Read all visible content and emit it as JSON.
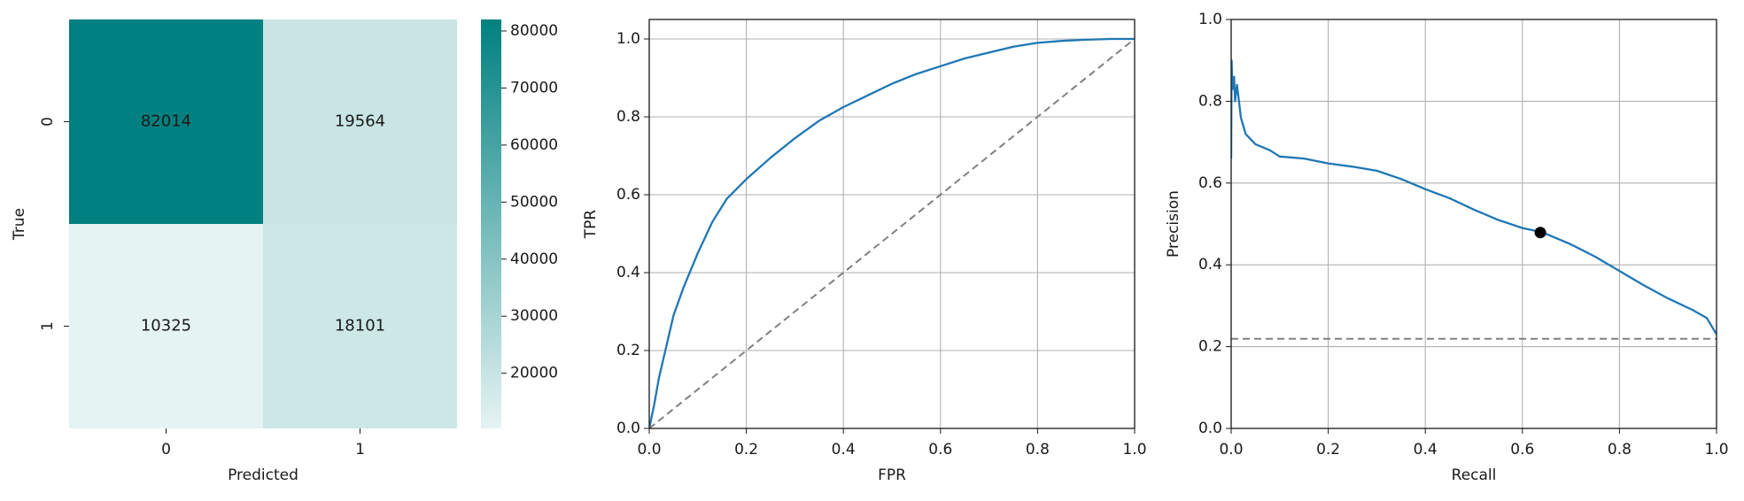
{
  "chart_data": [
    {
      "type": "heatmap",
      "xlabel": "Predicted",
      "ylabel": "True",
      "x_categories": [
        "0",
        "1"
      ],
      "y_categories": [
        "0",
        "1"
      ],
      "values": [
        [
          82014,
          19564
        ],
        [
          10325,
          18101
        ]
      ],
      "colorbar": {
        "min": 10325,
        "max": 82014,
        "ticks": [
          "20000",
          "30000",
          "40000",
          "50000",
          "60000",
          "70000",
          "80000"
        ],
        "color_low": "#e6f3f3",
        "color_high": "#008080"
      }
    },
    {
      "type": "line",
      "xlabel": "FPR",
      "ylabel": "TPR",
      "xlim": [
        0,
        1
      ],
      "ylim": [
        0,
        1.05
      ],
      "xticks": [
        "0.0",
        "0.2",
        "0.4",
        "0.6",
        "0.8",
        "1.0"
      ],
      "yticks": [
        "0.0",
        "0.2",
        "0.4",
        "0.6",
        "0.8",
        "1.0"
      ],
      "grid": true,
      "series": [
        {
          "color": "#1f77b4",
          "x": [
            0,
            0.01,
            0.02,
            0.035,
            0.05,
            0.07,
            0.1,
            0.13,
            0.16,
            0.2,
            0.25,
            0.3,
            0.35,
            0.4,
            0.45,
            0.5,
            0.55,
            0.6,
            0.65,
            0.7,
            0.75,
            0.8,
            0.85,
            0.9,
            0.95,
            1.0
          ],
          "y": [
            0,
            0.06,
            0.13,
            0.21,
            0.29,
            0.36,
            0.45,
            0.53,
            0.59,
            0.64,
            0.695,
            0.745,
            0.79,
            0.825,
            0.855,
            0.885,
            0.91,
            0.93,
            0.95,
            0.965,
            0.98,
            0.99,
            0.995,
            0.998,
            1.0,
            1.0
          ]
        },
        {
          "color": "#808080",
          "dashed": true,
          "x": [
            0,
            1
          ],
          "y": [
            0,
            1
          ]
        }
      ]
    },
    {
      "type": "line",
      "xlabel": "Recall",
      "ylabel": "Precision",
      "xlim": [
        0,
        1
      ],
      "ylim": [
        0,
        1
      ],
      "xticks": [
        "0.0",
        "0.2",
        "0.4",
        "0.6",
        "0.8",
        "1.0"
      ],
      "yticks": [
        "0.0",
        "0.2",
        "0.4",
        "0.6",
        "0.8",
        "1.0"
      ],
      "grid": true,
      "series": [
        {
          "color": "#1f77b4",
          "x": [
            0,
            0.001,
            0.002,
            0.004,
            0.006,
            0.008,
            0.012,
            0.02,
            0.03,
            0.05,
            0.08,
            0.1,
            0.15,
            0.2,
            0.25,
            0.3,
            0.35,
            0.4,
            0.45,
            0.5,
            0.55,
            0.6,
            0.64,
            0.7,
            0.75,
            0.8,
            0.85,
            0.9,
            0.95,
            0.98,
            1.0
          ],
          "y": [
            0.66,
            0.9,
            0.85,
            0.83,
            0.86,
            0.8,
            0.84,
            0.76,
            0.72,
            0.695,
            0.68,
            0.665,
            0.66,
            0.648,
            0.64,
            0.63,
            0.61,
            0.585,
            0.563,
            0.535,
            0.51,
            0.49,
            0.48,
            0.45,
            0.42,
            0.385,
            0.35,
            0.318,
            0.29,
            0.27,
            0.23
          ]
        },
        {
          "color": "#808080",
          "dashed": true,
          "x": [
            0,
            1
          ],
          "y": [
            0.219,
            0.219
          ]
        }
      ],
      "markers": [
        {
          "x": 0.637,
          "y": 0.479,
          "color": "#000000"
        }
      ]
    }
  ]
}
